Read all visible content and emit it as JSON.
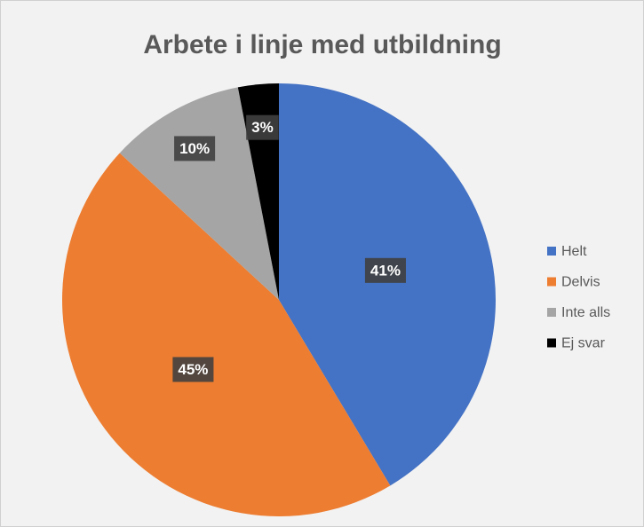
{
  "chart_data": {
    "type": "pie",
    "title": "Arbete i linje med utbildning",
    "categories": [
      "Helt",
      "Delvis",
      "Inte alls",
      "Ej svar"
    ],
    "values": [
      41,
      45,
      10,
      3
    ],
    "value_labels": [
      "41%",
      "45%",
      "10%",
      "3%"
    ],
    "colors": [
      "#4472c4",
      "#ed7d31",
      "#a5a5a5",
      "#000000"
    ],
    "legend": "right"
  }
}
